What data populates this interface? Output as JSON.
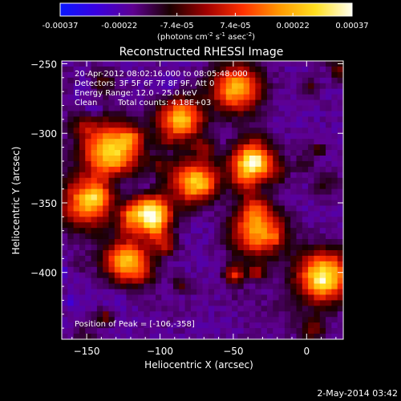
{
  "colorbar": {
    "tick_labels": [
      "-0.00037",
      "-0.00022",
      "-7.4e-05",
      "7.4e-05",
      "0.00022",
      "0.00037"
    ],
    "tick_values": [
      -0.00037,
      -0.00022,
      -7.4e-05,
      7.4e-05,
      0.00022,
      0.00037
    ],
    "range": [
      -0.00037,
      0.00037
    ],
    "units_label": "(photons cm",
    "units_sup1": "-2",
    "units_mid": " s",
    "units_sup2": "-1",
    "units_end": " asec",
    "units_sup3": "-2",
    "units_close": ")",
    "colors": [
      "#0a17ff",
      "#3a00e0",
      "#5e0090",
      "#1a0000",
      "#a00000",
      "#ff3000",
      "#ff9800",
      "#ffe020",
      "#fffff0"
    ]
  },
  "chart_data": {
    "type": "heatmap",
    "title": "Reconstructed RHESSI Image",
    "xlabel": "Heliocentric X (arcsec)",
    "ylabel": "Heliocentric Y (arcsec)",
    "xlim": [
      -167,
      25
    ],
    "ylim": [
      -448,
      -248
    ],
    "x_ticks": [
      -150,
      -100,
      -50,
      0
    ],
    "x_tick_labels": [
      "−150",
      "−100",
      "−50",
      "0"
    ],
    "y_ticks": [
      -250,
      -300,
      -350,
      -400
    ],
    "y_tick_labels": [
      "−250",
      "−300",
      "−350",
      "−400"
    ],
    "peak": {
      "x": -106,
      "y": -358
    },
    "bright_sources": [
      {
        "x": -106,
        "y": -358,
        "value": 0.00037
      },
      {
        "x": -133,
        "y": -312,
        "value": 0.00029
      },
      {
        "x": -86,
        "y": -290,
        "value": 0.00024
      },
      {
        "x": -37,
        "y": -320,
        "value": 0.00027
      },
      {
        "x": 12,
        "y": -403,
        "value": 0.0003
      },
      {
        "x": -48,
        "y": -268,
        "value": 0.00022
      },
      {
        "x": -122,
        "y": -392,
        "value": 0.00024
      },
      {
        "x": -33,
        "y": -370,
        "value": 0.0002
      },
      {
        "x": -150,
        "y": -350,
        "value": 0.00018
      },
      {
        "x": -77,
        "y": -335,
        "value": 0.00019
      }
    ],
    "faint_regions": [
      {
        "x": -68,
        "y": -350,
        "value": -0.00022
      },
      {
        "x": -5,
        "y": -352,
        "value": -0.0002
      },
      {
        "x": -95,
        "y": -420,
        "value": -0.00018
      },
      {
        "x": -20,
        "y": -430,
        "value": -0.00016
      }
    ]
  },
  "annotations": {
    "time_range": "20-Apr-2012 08:02:16.000 to 08:05:48.000",
    "detectors": "Detectors: 3F 5F 6F 7F 8F 9F, Att 0",
    "energy_range": "Energy Range: 12.0 - 25.0 keV",
    "clean_label": "Clean",
    "total_counts": "Total counts: 4.18E+03",
    "peak_position": "Position of Peak = [-106,-358]"
  },
  "footer": {
    "timestamp": "2-May-2014 03:42"
  }
}
